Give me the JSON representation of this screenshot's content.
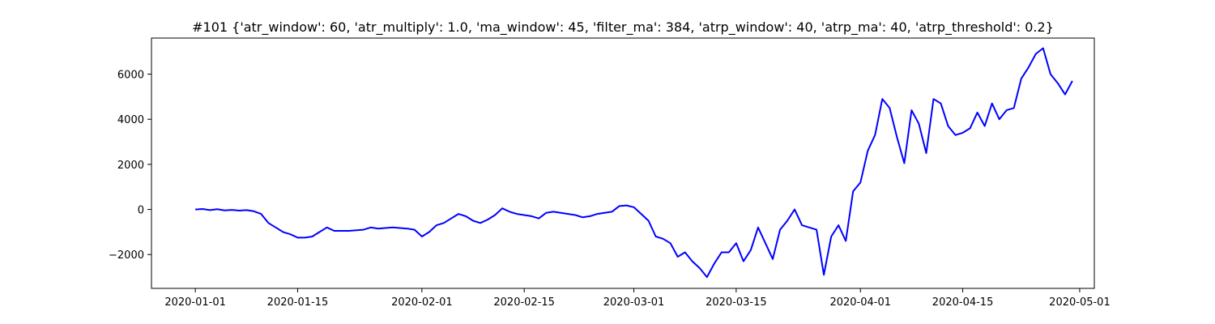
{
  "chart_data": {
    "type": "line",
    "title": "#101 {'atr_window': 60, 'atr_multiply': 1.0, 'ma_window': 45, 'filter_ma': 384, 'atrp_window': 40, 'atrp_ma': 40, 'atrp_threshold': 0.2}",
    "xlabel": "",
    "ylabel": "",
    "x_axis_type": "date",
    "xlim": [
      "2019-12-26",
      "2020-05-03"
    ],
    "ylim": [
      -3500,
      7600
    ],
    "grid": false,
    "legend": "none",
    "x_ticks": [
      "2020-01-01",
      "2020-01-15",
      "2020-02-01",
      "2020-02-15",
      "2020-03-01",
      "2020-03-15",
      "2020-04-01",
      "2020-04-15",
      "2020-05-01"
    ],
    "y_ticks": [
      -2000,
      0,
      2000,
      4000,
      6000
    ],
    "y_tick_labels": [
      "−2000",
      "0",
      "2000",
      "4000",
      "6000"
    ],
    "series": [
      {
        "color": "#0000ff",
        "points": [
          [
            "2020-01-01",
            0
          ],
          [
            "2020-01-02",
            20
          ],
          [
            "2020-01-03",
            -30
          ],
          [
            "2020-01-04",
            10
          ],
          [
            "2020-01-05",
            -40
          ],
          [
            "2020-01-06",
            -20
          ],
          [
            "2020-01-07",
            -50
          ],
          [
            "2020-01-08",
            -30
          ],
          [
            "2020-01-09",
            -80
          ],
          [
            "2020-01-10",
            -200
          ],
          [
            "2020-01-11",
            -600
          ],
          [
            "2020-01-12",
            -800
          ],
          [
            "2020-01-13",
            -1000
          ],
          [
            "2020-01-14",
            -1100
          ],
          [
            "2020-01-15",
            -1250
          ],
          [
            "2020-01-16",
            -1250
          ],
          [
            "2020-01-17",
            -1200
          ],
          [
            "2020-01-18",
            -1000
          ],
          [
            "2020-01-19",
            -800
          ],
          [
            "2020-01-20",
            -950
          ],
          [
            "2020-01-22",
            -950
          ],
          [
            "2020-01-24",
            -900
          ],
          [
            "2020-01-25",
            -800
          ],
          [
            "2020-01-26",
            -850
          ],
          [
            "2020-01-28",
            -800
          ],
          [
            "2020-01-30",
            -850
          ],
          [
            "2020-01-31",
            -900
          ],
          [
            "2020-02-01",
            -1200
          ],
          [
            "2020-02-02",
            -1000
          ],
          [
            "2020-02-03",
            -700
          ],
          [
            "2020-02-04",
            -600
          ],
          [
            "2020-02-05",
            -400
          ],
          [
            "2020-02-06",
            -200
          ],
          [
            "2020-02-07",
            -300
          ],
          [
            "2020-02-08",
            -500
          ],
          [
            "2020-02-09",
            -600
          ],
          [
            "2020-02-10",
            -450
          ],
          [
            "2020-02-11",
            -250
          ],
          [
            "2020-02-12",
            50
          ],
          [
            "2020-02-13",
            -100
          ],
          [
            "2020-02-14",
            -200
          ],
          [
            "2020-02-15",
            -250
          ],
          [
            "2020-02-16",
            -300
          ],
          [
            "2020-02-17",
            -400
          ],
          [
            "2020-02-18",
            -150
          ],
          [
            "2020-02-19",
            -100
          ],
          [
            "2020-02-20",
            -150
          ],
          [
            "2020-02-21",
            -200
          ],
          [
            "2020-02-22",
            -250
          ],
          [
            "2020-02-23",
            -350
          ],
          [
            "2020-02-24",
            -300
          ],
          [
            "2020-02-25",
            -200
          ],
          [
            "2020-02-26",
            -150
          ],
          [
            "2020-02-27",
            -100
          ],
          [
            "2020-02-28",
            150
          ],
          [
            "2020-02-29",
            180
          ],
          [
            "2020-03-01",
            100
          ],
          [
            "2020-03-02",
            -200
          ],
          [
            "2020-03-03",
            -500
          ],
          [
            "2020-03-04",
            -1200
          ],
          [
            "2020-03-05",
            -1300
          ],
          [
            "2020-03-06",
            -1500
          ],
          [
            "2020-03-07",
            -2100
          ],
          [
            "2020-03-08",
            -1900
          ],
          [
            "2020-03-09",
            -2300
          ],
          [
            "2020-03-10",
            -2600
          ],
          [
            "2020-03-11",
            -3000
          ],
          [
            "2020-03-12",
            -2400
          ],
          [
            "2020-03-13",
            -1900
          ],
          [
            "2020-03-14",
            -1900
          ],
          [
            "2020-03-15",
            -1500
          ],
          [
            "2020-03-16",
            -2300
          ],
          [
            "2020-03-17",
            -1800
          ],
          [
            "2020-03-18",
            -800
          ],
          [
            "2020-03-19",
            -1500
          ],
          [
            "2020-03-20",
            -2200
          ],
          [
            "2020-03-21",
            -900
          ],
          [
            "2020-03-22",
            -500
          ],
          [
            "2020-03-23",
            0
          ],
          [
            "2020-03-24",
            -700
          ],
          [
            "2020-03-25",
            -800
          ],
          [
            "2020-03-26",
            -900
          ],
          [
            "2020-03-27",
            -2900
          ],
          [
            "2020-03-28",
            -1200
          ],
          [
            "2020-03-29",
            -700
          ],
          [
            "2020-03-30",
            -1400
          ],
          [
            "2020-03-31",
            800
          ],
          [
            "2020-04-01",
            1200
          ],
          [
            "2020-04-02",
            2600
          ],
          [
            "2020-04-03",
            3300
          ],
          [
            "2020-04-04",
            4900
          ],
          [
            "2020-04-05",
            4500
          ],
          [
            "2020-04-06",
            3200
          ],
          [
            "2020-04-07",
            2050
          ],
          [
            "2020-04-08",
            4400
          ],
          [
            "2020-04-09",
            3800
          ],
          [
            "2020-04-10",
            2500
          ],
          [
            "2020-04-11",
            4900
          ],
          [
            "2020-04-12",
            4700
          ],
          [
            "2020-04-13",
            3700
          ],
          [
            "2020-04-14",
            3300
          ],
          [
            "2020-04-15",
            3400
          ],
          [
            "2020-04-16",
            3600
          ],
          [
            "2020-04-17",
            4300
          ],
          [
            "2020-04-18",
            3700
          ],
          [
            "2020-04-19",
            4700
          ],
          [
            "2020-04-20",
            4000
          ],
          [
            "2020-04-21",
            4400
          ],
          [
            "2020-04-22",
            4500
          ],
          [
            "2020-04-23",
            5800
          ],
          [
            "2020-04-24",
            6300
          ],
          [
            "2020-04-25",
            6900
          ],
          [
            "2020-04-26",
            7150
          ],
          [
            "2020-04-27",
            6000
          ],
          [
            "2020-04-28",
            5600
          ],
          [
            "2020-04-29",
            5100
          ],
          [
            "2020-04-30",
            5700
          ]
        ]
      }
    ]
  }
}
